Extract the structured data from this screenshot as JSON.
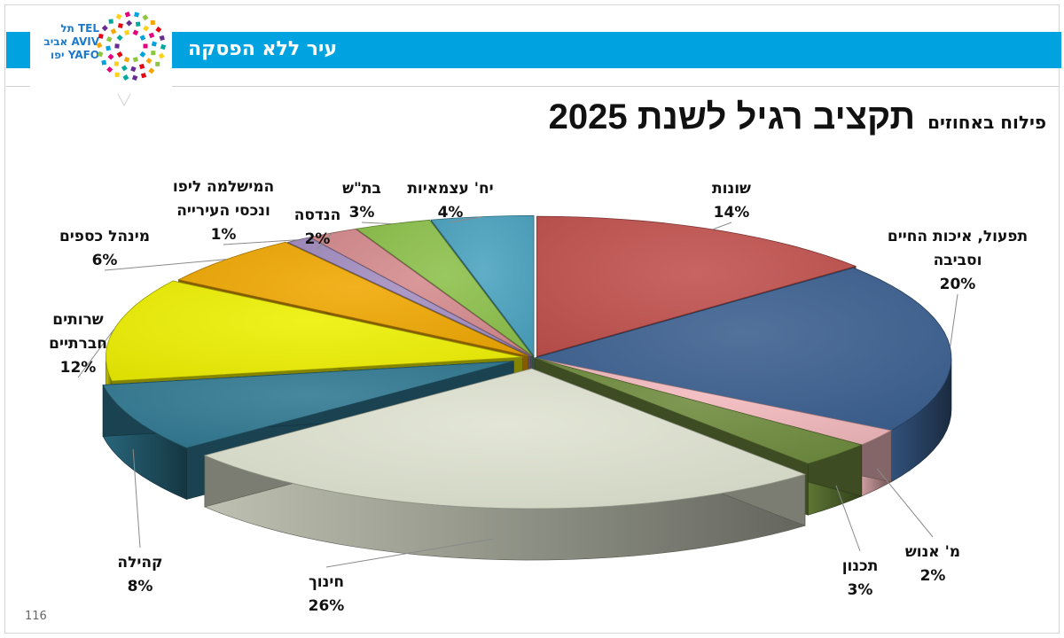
{
  "header": {
    "slogan": "עיר ללא הפסקה",
    "logo": {
      "lines": [
        "תל TEL",
        "אביב AVIV",
        "יפו YAFO"
      ]
    },
    "bar_color": "#00a3e0"
  },
  "page_number": "116",
  "chart_data": {
    "type": "pie",
    "style": "3d-exploded",
    "title": "תקציב רגיל לשנת 2025",
    "subtitle": "פילוח באחוזים",
    "unit": "%",
    "slices": [
      {
        "label_lines": [
          "שונות"
        ],
        "value": 14,
        "value_label": "14%",
        "color": "#c0504d"
      },
      {
        "label_lines": [
          "תפעול, איכות החיים",
          "וסביבה"
        ],
        "value": 20,
        "value_label": "20%",
        "color": "#3a5f8f"
      },
      {
        "label_lines": [
          "מ' אנוש"
        ],
        "value": 2,
        "value_label": "2%",
        "color": "#f2b9bd"
      },
      {
        "label_lines": [
          "תכנון"
        ],
        "value": 3,
        "value_label": "3%",
        "color": "#6e8b3d"
      },
      {
        "label_lines": [
          "חינוך"
        ],
        "value": 26,
        "value_label": "26%",
        "color": "#dfe3d0"
      },
      {
        "label_lines": [
          "קהילה"
        ],
        "value": 8,
        "value_label": "8%",
        "color": "#2f7891"
      },
      {
        "label_lines": [
          "שרותים",
          "חברתיים"
        ],
        "value": 12,
        "value_label": "12%",
        "color": "#eef000"
      },
      {
        "label_lines": [
          "מינהל כספים"
        ],
        "value": 6,
        "value_label": "6%",
        "color": "#f0a800"
      },
      {
        "label_lines": [
          "המישלמה ליפו",
          "ונכסי העירייה"
        ],
        "value": 1,
        "value_label": "1%",
        "color": "#a38dc0"
      },
      {
        "label_lines": [
          "הנדסה"
        ],
        "value": 2,
        "value_label": "2%",
        "color": "#d58a8c"
      },
      {
        "label_lines": [
          "בת\"ש"
        ],
        "value": 3,
        "value_label": "3%",
        "color": "#8cc04a"
      },
      {
        "label_lines": [
          "יח' עצמאיות"
        ],
        "value": 4,
        "value_label": "4%",
        "color": "#4aa3c0"
      }
    ]
  }
}
